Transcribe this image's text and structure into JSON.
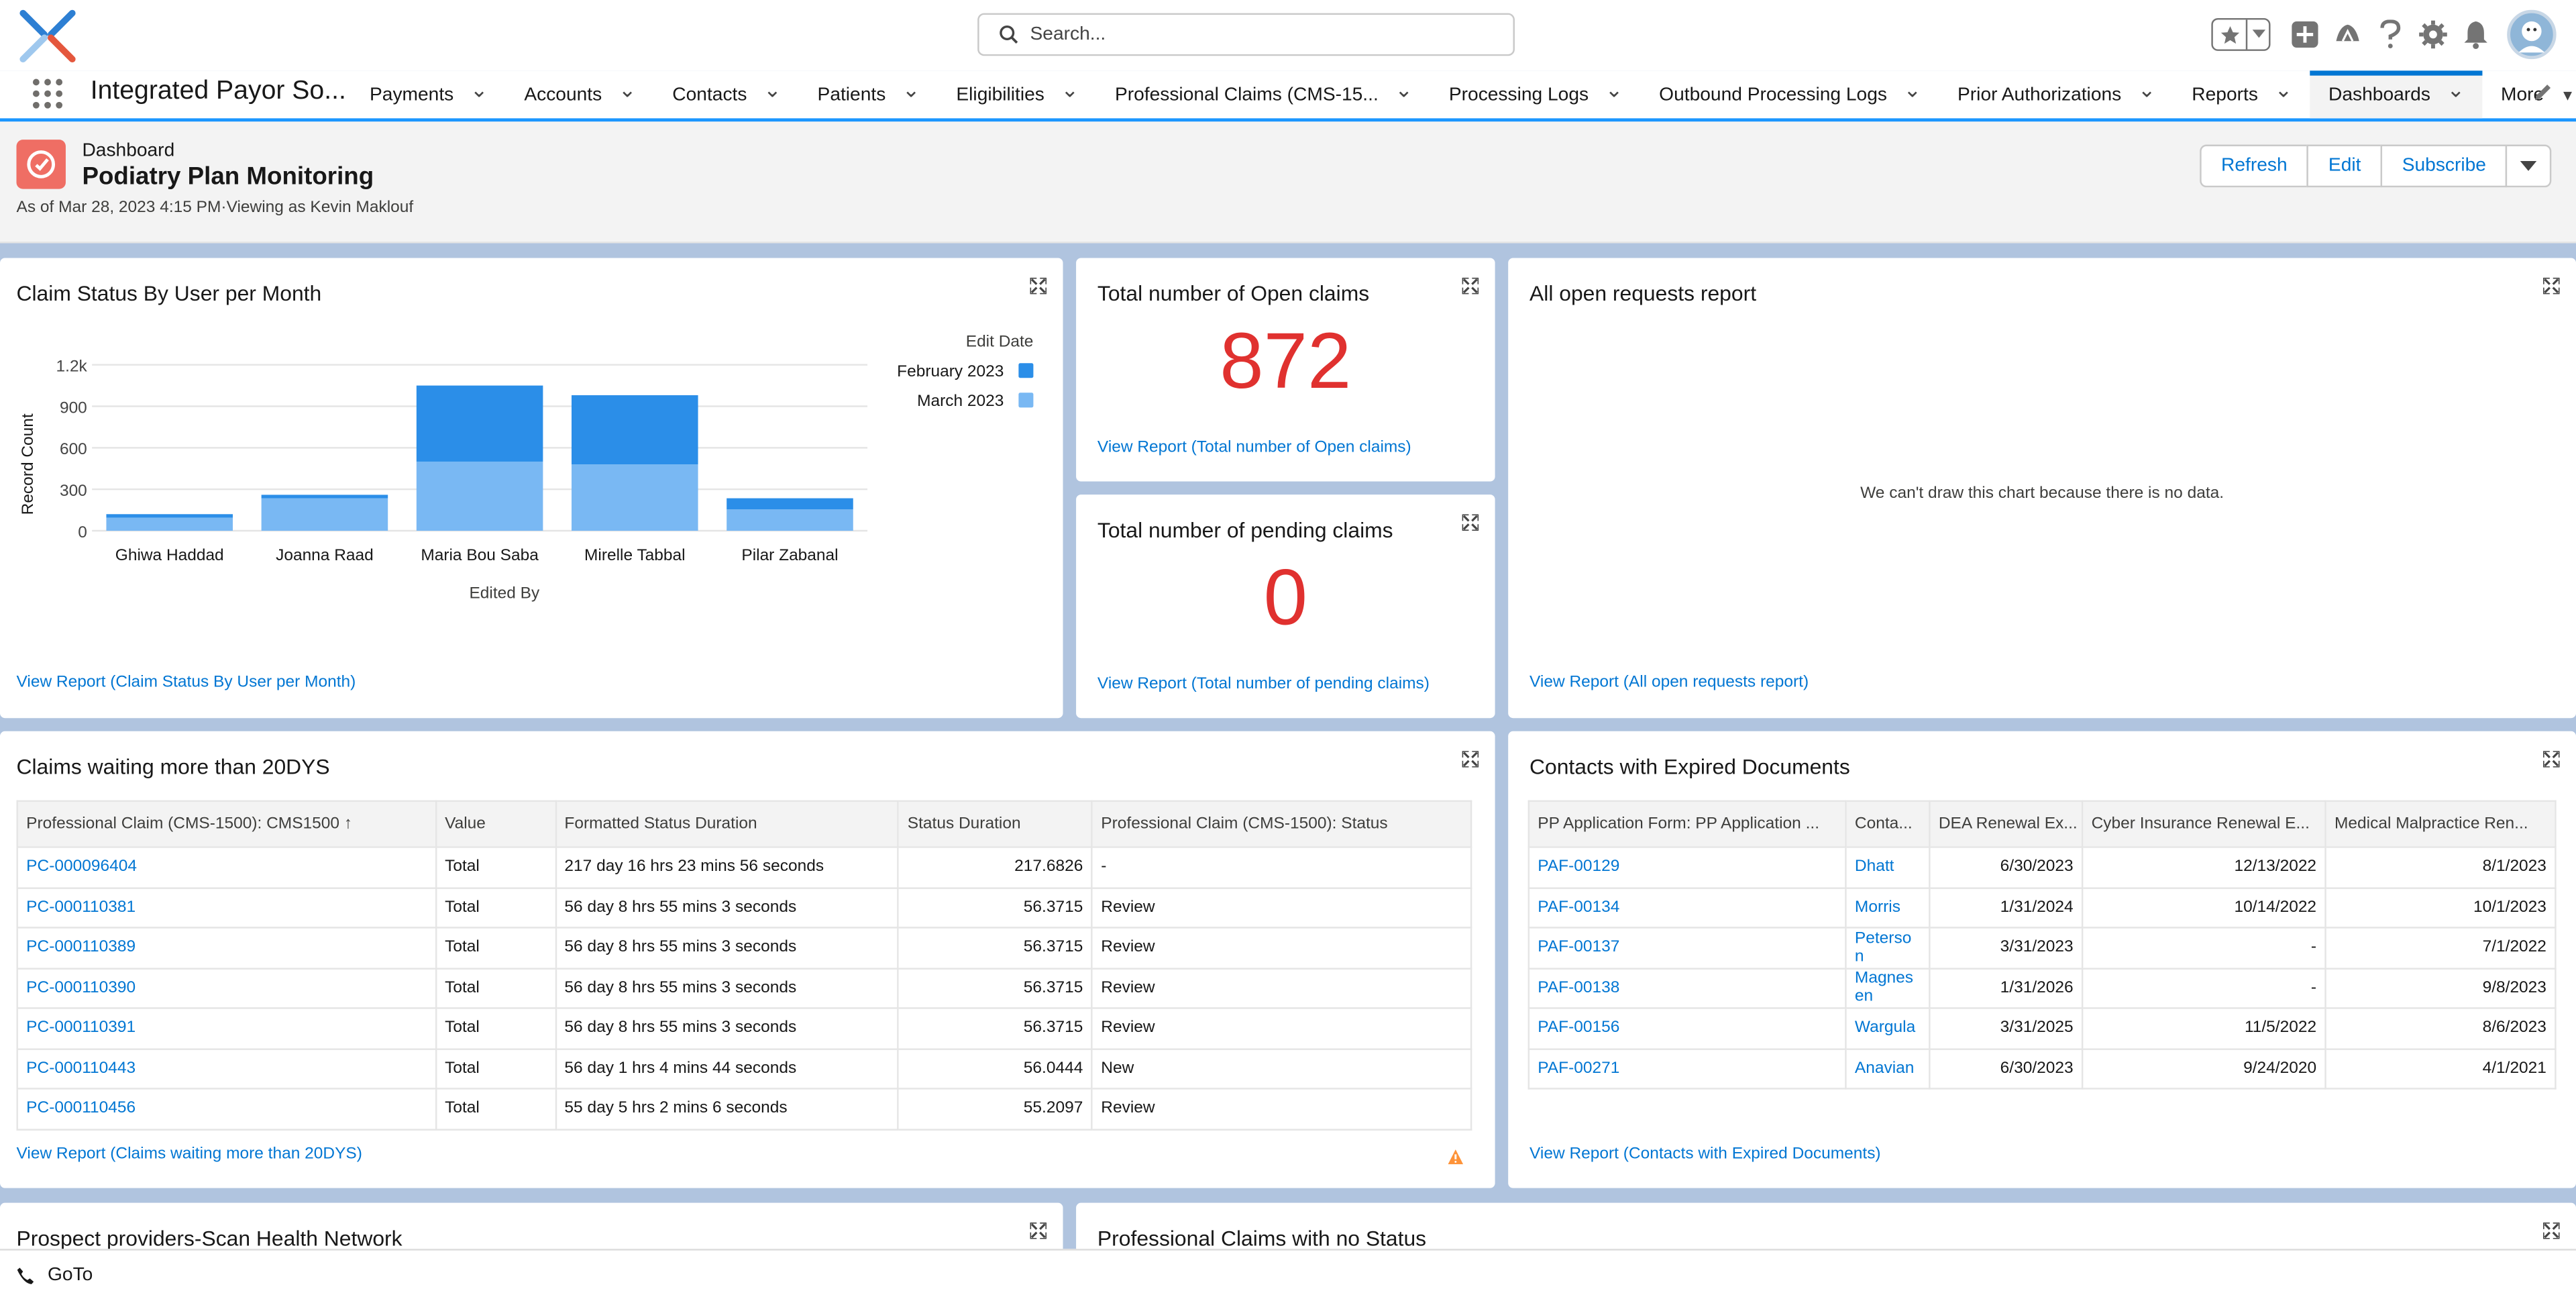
{
  "search": {
    "placeholder": "Search..."
  },
  "app": {
    "name": "Integrated Payor So..."
  },
  "tabs": [
    {
      "label": "Payments"
    },
    {
      "label": "Accounts"
    },
    {
      "label": "Contacts"
    },
    {
      "label": "Patients"
    },
    {
      "label": "Eligibilities"
    },
    {
      "label": "Professional Claims (CMS-15..."
    },
    {
      "label": "Processing Logs"
    },
    {
      "label": "Outbound Processing Logs"
    },
    {
      "label": "Prior Authorizations"
    },
    {
      "label": "Reports"
    },
    {
      "label": "Dashboards",
      "active": true
    },
    {
      "label": "More"
    }
  ],
  "header": {
    "type_label": "Dashboard",
    "title": "Podiatry Plan Monitoring",
    "subtitle": "As of Mar 28, 2023 4:15 PM·Viewing as Kevin Maklouf",
    "buttons": {
      "refresh": "Refresh",
      "edit": "Edit",
      "subscribe": "Subscribe"
    }
  },
  "claim_status": {
    "title": "Claim Status By User per Month",
    "link": "View Report (Claim Status By User per Month)"
  },
  "chart_data": {
    "type": "bar",
    "stacked": true,
    "categories": [
      "Ghiwa Haddad",
      "Joanna Raad",
      "Maria Bou Saba",
      "Mirelle Tabbal",
      "Pilar Zabanal"
    ],
    "series": [
      {
        "name": "February 2023",
        "values": [
          25,
          25,
          550,
          500,
          80
        ],
        "color": "#2b8ee8"
      },
      {
        "name": "March 2023",
        "values": [
          95,
          235,
          500,
          480,
          155
        ],
        "color": "#79b8f3"
      }
    ],
    "xlabel": "Edited By",
    "ylabel": "Record Count",
    "legend_title": "Edit Date",
    "yticks": [
      "0",
      "300",
      "600",
      "900",
      "1.2k"
    ],
    "ylim": [
      0,
      1200
    ],
    "legend_position": "top-right",
    "grid": true
  },
  "open_claims": {
    "title": "Total number of Open claims",
    "value": "872",
    "link": "View Report (Total number of Open claims)"
  },
  "pending_claims": {
    "title": "Total number of pending claims",
    "value": "0",
    "link": "View Report (Total number of pending claims)"
  },
  "open_requests": {
    "title": "All open requests report",
    "empty": "We can't draw this chart because there is no data.",
    "link": "View Report (All open requests report)"
  },
  "waiting": {
    "title": "Claims waiting more than 20DYS",
    "headers": [
      "Professional Claim (CMS-1500): CMS1500 ↑",
      "Value",
      "Formatted Status Duration",
      "Status Duration",
      "Professional Claim (CMS-1500): Status"
    ],
    "rows": [
      [
        "PC-000096404",
        "Total",
        "217 day 16 hrs 23 mins 56 seconds",
        "217.6826",
        "-"
      ],
      [
        "PC-000110381",
        "Total",
        "56 day 8 hrs 55 mins 3 seconds",
        "56.3715",
        "Review"
      ],
      [
        "PC-000110389",
        "Total",
        "56 day 8 hrs 55 mins 3 seconds",
        "56.3715",
        "Review"
      ],
      [
        "PC-000110390",
        "Total",
        "56 day 8 hrs 55 mins 3 seconds",
        "56.3715",
        "Review"
      ],
      [
        "PC-000110391",
        "Total",
        "56 day 8 hrs 55 mins 3 seconds",
        "56.3715",
        "Review"
      ],
      [
        "PC-000110443",
        "Total",
        "56 day 1 hrs 4 mins 44 seconds",
        "56.0444",
        "New"
      ],
      [
        "PC-000110456",
        "Total",
        "55 day 5 hrs 2 mins 6 seconds",
        "55.2097",
        "Review"
      ]
    ],
    "link": "View Report (Claims waiting more than 20DYS)"
  },
  "expired": {
    "title": "Contacts with Expired Documents",
    "headers": [
      "PP Application Form: PP Application ...",
      "Conta...",
      "DEA Renewal Ex...",
      "Cyber Insurance Renewal E...",
      "Medical Malpractice Ren..."
    ],
    "rows": [
      [
        "PAF-00129",
        "Dhatt",
        "6/30/2023",
        "12/13/2022",
        "8/1/2023"
      ],
      [
        "PAF-00134",
        "Morris",
        "1/31/2024",
        "10/14/2022",
        "10/1/2023"
      ],
      [
        "PAF-00137",
        "Peterso n",
        "3/31/2023",
        "-",
        "7/1/2022"
      ],
      [
        "PAF-00138",
        "Magnes en",
        "1/31/2026",
        "-",
        "9/8/2023"
      ],
      [
        "PAF-00156",
        "Wargula",
        "3/31/2025",
        "11/5/2022",
        "8/6/2023"
      ],
      [
        "PAF-00271",
        "Anavian",
        "6/30/2023",
        "9/24/2020",
        "4/1/2021"
      ]
    ],
    "link": "View Report (Contacts with Expired Documents)"
  },
  "prospect": {
    "title": "Prospect providers-Scan Health Network"
  },
  "nostatus": {
    "title": "Professional Claims with no Status"
  },
  "footer": {
    "goto": "GoTo"
  }
}
